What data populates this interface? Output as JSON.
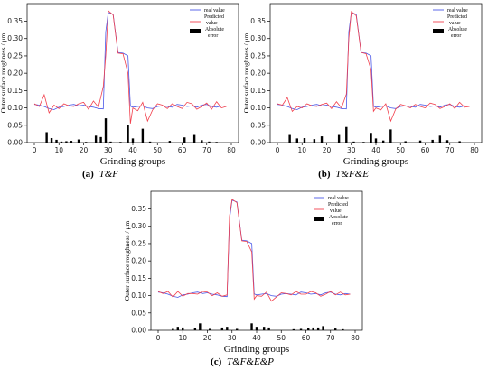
{
  "figure": {
    "captions": [
      {
        "letter": "(a)",
        "name": "T&F"
      },
      {
        "letter": "(b)",
        "name": "T&F&E"
      },
      {
        "letter": "(c)",
        "name": "T&F&E&P"
      }
    ]
  },
  "colors": {
    "real": "#4a57e8",
    "predicted": "#f2404d",
    "error": "#000000"
  },
  "chart_data": [
    {
      "type": "line",
      "title": "",
      "xlabel": "Grinding groups",
      "ylabel": "Outer surface roughness / μm",
      "xlim": [
        0,
        80
      ],
      "ylim": [
        0,
        0.38
      ],
      "xticks": [
        "0",
        "10",
        "20",
        "30",
        "40",
        "50",
        "60",
        "70",
        "80"
      ],
      "yticks": [
        "0.00",
        "0.05",
        "0.10",
        "0.15",
        "0.20",
        "0.25",
        "0.30",
        "0.35"
      ],
      "legend": {
        "position": "top-right",
        "labels": [
          "real value",
          "Predicted",
          "value",
          "Absolute",
          "error"
        ]
      },
      "grid": false,
      "series": [
        {
          "name": "real value",
          "x": [
            0,
            2,
            4,
            6,
            8,
            10,
            12,
            14,
            16,
            18,
            20,
            22,
            24,
            26,
            28,
            29,
            30,
            32,
            34,
            36,
            38,
            39,
            40,
            42,
            44,
            46,
            48,
            50,
            52,
            54,
            56,
            58,
            60,
            62,
            64,
            66,
            68,
            70,
            72,
            74,
            76,
            78
          ],
          "values": [
            0.11,
            0.108,
            0.104,
            0.098,
            0.095,
            0.102,
            0.104,
            0.108,
            0.11,
            0.106,
            0.108,
            0.104,
            0.102,
            0.098,
            0.097,
            0.32,
            0.375,
            0.37,
            0.26,
            0.258,
            0.25,
            0.105,
            0.102,
            0.104,
            0.106,
            0.1,
            0.098,
            0.104,
            0.106,
            0.104,
            0.102,
            0.11,
            0.108,
            0.104,
            0.106,
            0.102,
            0.108,
            0.11,
            0.104,
            0.102,
            0.106,
            0.104
          ]
        },
        {
          "name": "Predicted value",
          "x": [
            0,
            2,
            4,
            6,
            8,
            10,
            12,
            14,
            16,
            18,
            20,
            22,
            24,
            26,
            28,
            29,
            30,
            32,
            34,
            36,
            38,
            39,
            40,
            42,
            44,
            46,
            48,
            50,
            52,
            54,
            56,
            58,
            60,
            62,
            64,
            66,
            68,
            70,
            72,
            74,
            76,
            78
          ],
          "values": [
            0.112,
            0.104,
            0.138,
            0.086,
            0.108,
            0.098,
            0.112,
            0.106,
            0.104,
            0.112,
            0.116,
            0.096,
            0.12,
            0.102,
            0.162,
            0.25,
            0.38,
            0.368,
            0.258,
            0.256,
            0.2,
            0.055,
            0.1,
            0.092,
            0.116,
            0.062,
            0.094,
            0.112,
            0.108,
            0.098,
            0.112,
            0.104,
            0.098,
            0.116,
            0.112,
            0.096,
            0.104,
            0.114,
            0.096,
            0.118,
            0.1,
            0.104
          ]
        },
        {
          "name": "Absolute error",
          "kind": "bar",
          "x": [
            5,
            7,
            9,
            11,
            13,
            15,
            18,
            21,
            25,
            27,
            29,
            31,
            35,
            38,
            40,
            44,
            47,
            55,
            61,
            65,
            68,
            71,
            74
          ],
          "values": [
            0.03,
            0.013,
            0.008,
            0.003,
            0.004,
            0.005,
            0.009,
            0.002,
            0.02,
            0.016,
            0.07,
            0.003,
            0.002,
            0.05,
            0.012,
            0.04,
            0.003,
            0.005,
            0.015,
            0.022,
            0.007,
            0.003,
            0.002
          ]
        }
      ]
    },
    {
      "type": "line",
      "title": "",
      "xlabel": "Grinding groups",
      "ylabel": "Outer surface roughness / μm",
      "xlim": [
        0,
        80
      ],
      "ylim": [
        0,
        0.38
      ],
      "xticks": [
        "0",
        "10",
        "20",
        "30",
        "40",
        "50",
        "60",
        "70",
        "80"
      ],
      "yticks": [
        "0.00",
        "0.05",
        "0.10",
        "0.15",
        "0.20",
        "0.25",
        "0.30",
        "0.35"
      ],
      "legend": {
        "position": "top-right",
        "labels": [
          "real value",
          "Predicted",
          "value",
          "Absolute",
          "error"
        ]
      },
      "grid": false,
      "series": [
        {
          "name": "real value",
          "x": [
            0,
            2,
            4,
            6,
            8,
            10,
            12,
            14,
            16,
            18,
            20,
            22,
            24,
            26,
            28,
            29,
            30,
            32,
            34,
            36,
            38,
            39,
            40,
            42,
            44,
            46,
            48,
            50,
            52,
            54,
            56,
            58,
            60,
            62,
            64,
            66,
            68,
            70,
            72,
            74,
            76,
            78
          ],
          "values": [
            0.11,
            0.108,
            0.104,
            0.098,
            0.095,
            0.102,
            0.104,
            0.108,
            0.11,
            0.106,
            0.108,
            0.104,
            0.102,
            0.098,
            0.097,
            0.32,
            0.375,
            0.37,
            0.26,
            0.258,
            0.25,
            0.105,
            0.102,
            0.104,
            0.106,
            0.1,
            0.098,
            0.104,
            0.106,
            0.104,
            0.102,
            0.11,
            0.108,
            0.104,
            0.106,
            0.102,
            0.108,
            0.11,
            0.104,
            0.102,
            0.106,
            0.104
          ]
        },
        {
          "name": "Predicted value",
          "x": [
            0,
            2,
            4,
            6,
            8,
            10,
            12,
            14,
            16,
            18,
            20,
            22,
            24,
            26,
            28,
            29,
            30,
            32,
            34,
            36,
            38,
            39,
            40,
            42,
            44,
            46,
            48,
            50,
            52,
            54,
            56,
            58,
            60,
            62,
            64,
            66,
            68,
            70,
            72,
            74,
            76,
            78
          ],
          "values": [
            0.112,
            0.108,
            0.13,
            0.09,
            0.104,
            0.1,
            0.112,
            0.106,
            0.104,
            0.11,
            0.114,
            0.098,
            0.118,
            0.1,
            0.14,
            0.3,
            0.378,
            0.366,
            0.26,
            0.256,
            0.21,
            0.09,
            0.1,
            0.094,
            0.112,
            0.062,
            0.096,
            0.11,
            0.106,
            0.1,
            0.11,
            0.104,
            0.1,
            0.114,
            0.11,
            0.098,
            0.104,
            0.112,
            0.098,
            0.116,
            0.102,
            0.104
          ]
        },
        {
          "name": "Absolute error",
          "kind": "bar",
          "x": [
            5,
            8,
            11,
            15,
            18,
            25,
            28,
            31,
            35,
            38,
            40,
            43,
            46,
            52,
            58,
            63,
            66,
            69,
            74
          ],
          "values": [
            0.022,
            0.012,
            0.013,
            0.01,
            0.018,
            0.022,
            0.045,
            0.003,
            0.002,
            0.028,
            0.012,
            0.006,
            0.038,
            0.004,
            0.006,
            0.008,
            0.02,
            0.007,
            0.004
          ]
        }
      ]
    },
    {
      "type": "line",
      "title": "",
      "xlabel": "Grinding groups",
      "ylabel": "Outer surface roughness / μm",
      "xlim": [
        0,
        80
      ],
      "ylim": [
        0,
        0.38
      ],
      "xticks": [
        "0",
        "10",
        "20",
        "30",
        "40",
        "50",
        "60",
        "70",
        "80"
      ],
      "yticks": [
        "0.00",
        "0.05",
        "0.10",
        "0.15",
        "0.20",
        "0.25",
        "0.30",
        "0.35"
      ],
      "legend": {
        "position": "top-right",
        "labels": [
          "real value",
          "Predicted",
          "value",
          "Absolute",
          "error"
        ]
      },
      "grid": false,
      "series": [
        {
          "name": "real value",
          "x": [
            0,
            2,
            4,
            6,
            8,
            10,
            12,
            14,
            16,
            18,
            20,
            22,
            24,
            26,
            28,
            29,
            30,
            32,
            34,
            36,
            38,
            39,
            40,
            42,
            44,
            46,
            48,
            50,
            52,
            54,
            56,
            58,
            60,
            62,
            64,
            66,
            68,
            70,
            72,
            74,
            76,
            78
          ],
          "values": [
            0.11,
            0.108,
            0.104,
            0.098,
            0.095,
            0.102,
            0.104,
            0.108,
            0.11,
            0.106,
            0.108,
            0.104,
            0.102,
            0.098,
            0.097,
            0.32,
            0.375,
            0.37,
            0.26,
            0.258,
            0.25,
            0.105,
            0.102,
            0.104,
            0.106,
            0.1,
            0.098,
            0.104,
            0.106,
            0.104,
            0.102,
            0.11,
            0.108,
            0.104,
            0.106,
            0.102,
            0.108,
            0.11,
            0.104,
            0.102,
            0.106,
            0.104
          ]
        },
        {
          "name": "Predicted value",
          "x": [
            0,
            2,
            4,
            6,
            8,
            10,
            12,
            14,
            16,
            18,
            20,
            22,
            24,
            26,
            28,
            29,
            30,
            32,
            34,
            36,
            38,
            39,
            40,
            42,
            44,
            46,
            48,
            50,
            52,
            54,
            56,
            58,
            60,
            62,
            64,
            66,
            68,
            70,
            72,
            74,
            76,
            78
          ],
          "values": [
            0.112,
            0.106,
            0.112,
            0.096,
            0.112,
            0.098,
            0.106,
            0.106,
            0.104,
            0.112,
            0.11,
            0.1,
            0.108,
            0.098,
            0.102,
            0.33,
            0.378,
            0.368,
            0.258,
            0.256,
            0.226,
            0.09,
            0.1,
            0.098,
            0.11,
            0.084,
            0.096,
            0.108,
            0.106,
            0.102,
            0.112,
            0.104,
            0.104,
            0.112,
            0.108,
            0.098,
            0.104,
            0.112,
            0.102,
            0.11,
            0.102,
            0.104
          ]
        },
        {
          "name": "Absolute error",
          "kind": "bar",
          "x": [
            6,
            8,
            10,
            15,
            17,
            21,
            26,
            28,
            32,
            38,
            40,
            43,
            45,
            55,
            58,
            61,
            63,
            65,
            67,
            72,
            75
          ],
          "values": [
            0.004,
            0.01,
            0.008,
            0.006,
            0.02,
            0.004,
            0.008,
            0.01,
            0.004,
            0.02,
            0.01,
            0.01,
            0.008,
            0.003,
            0.004,
            0.006,
            0.008,
            0.008,
            0.012,
            0.005,
            0.003
          ]
        }
      ]
    }
  ]
}
